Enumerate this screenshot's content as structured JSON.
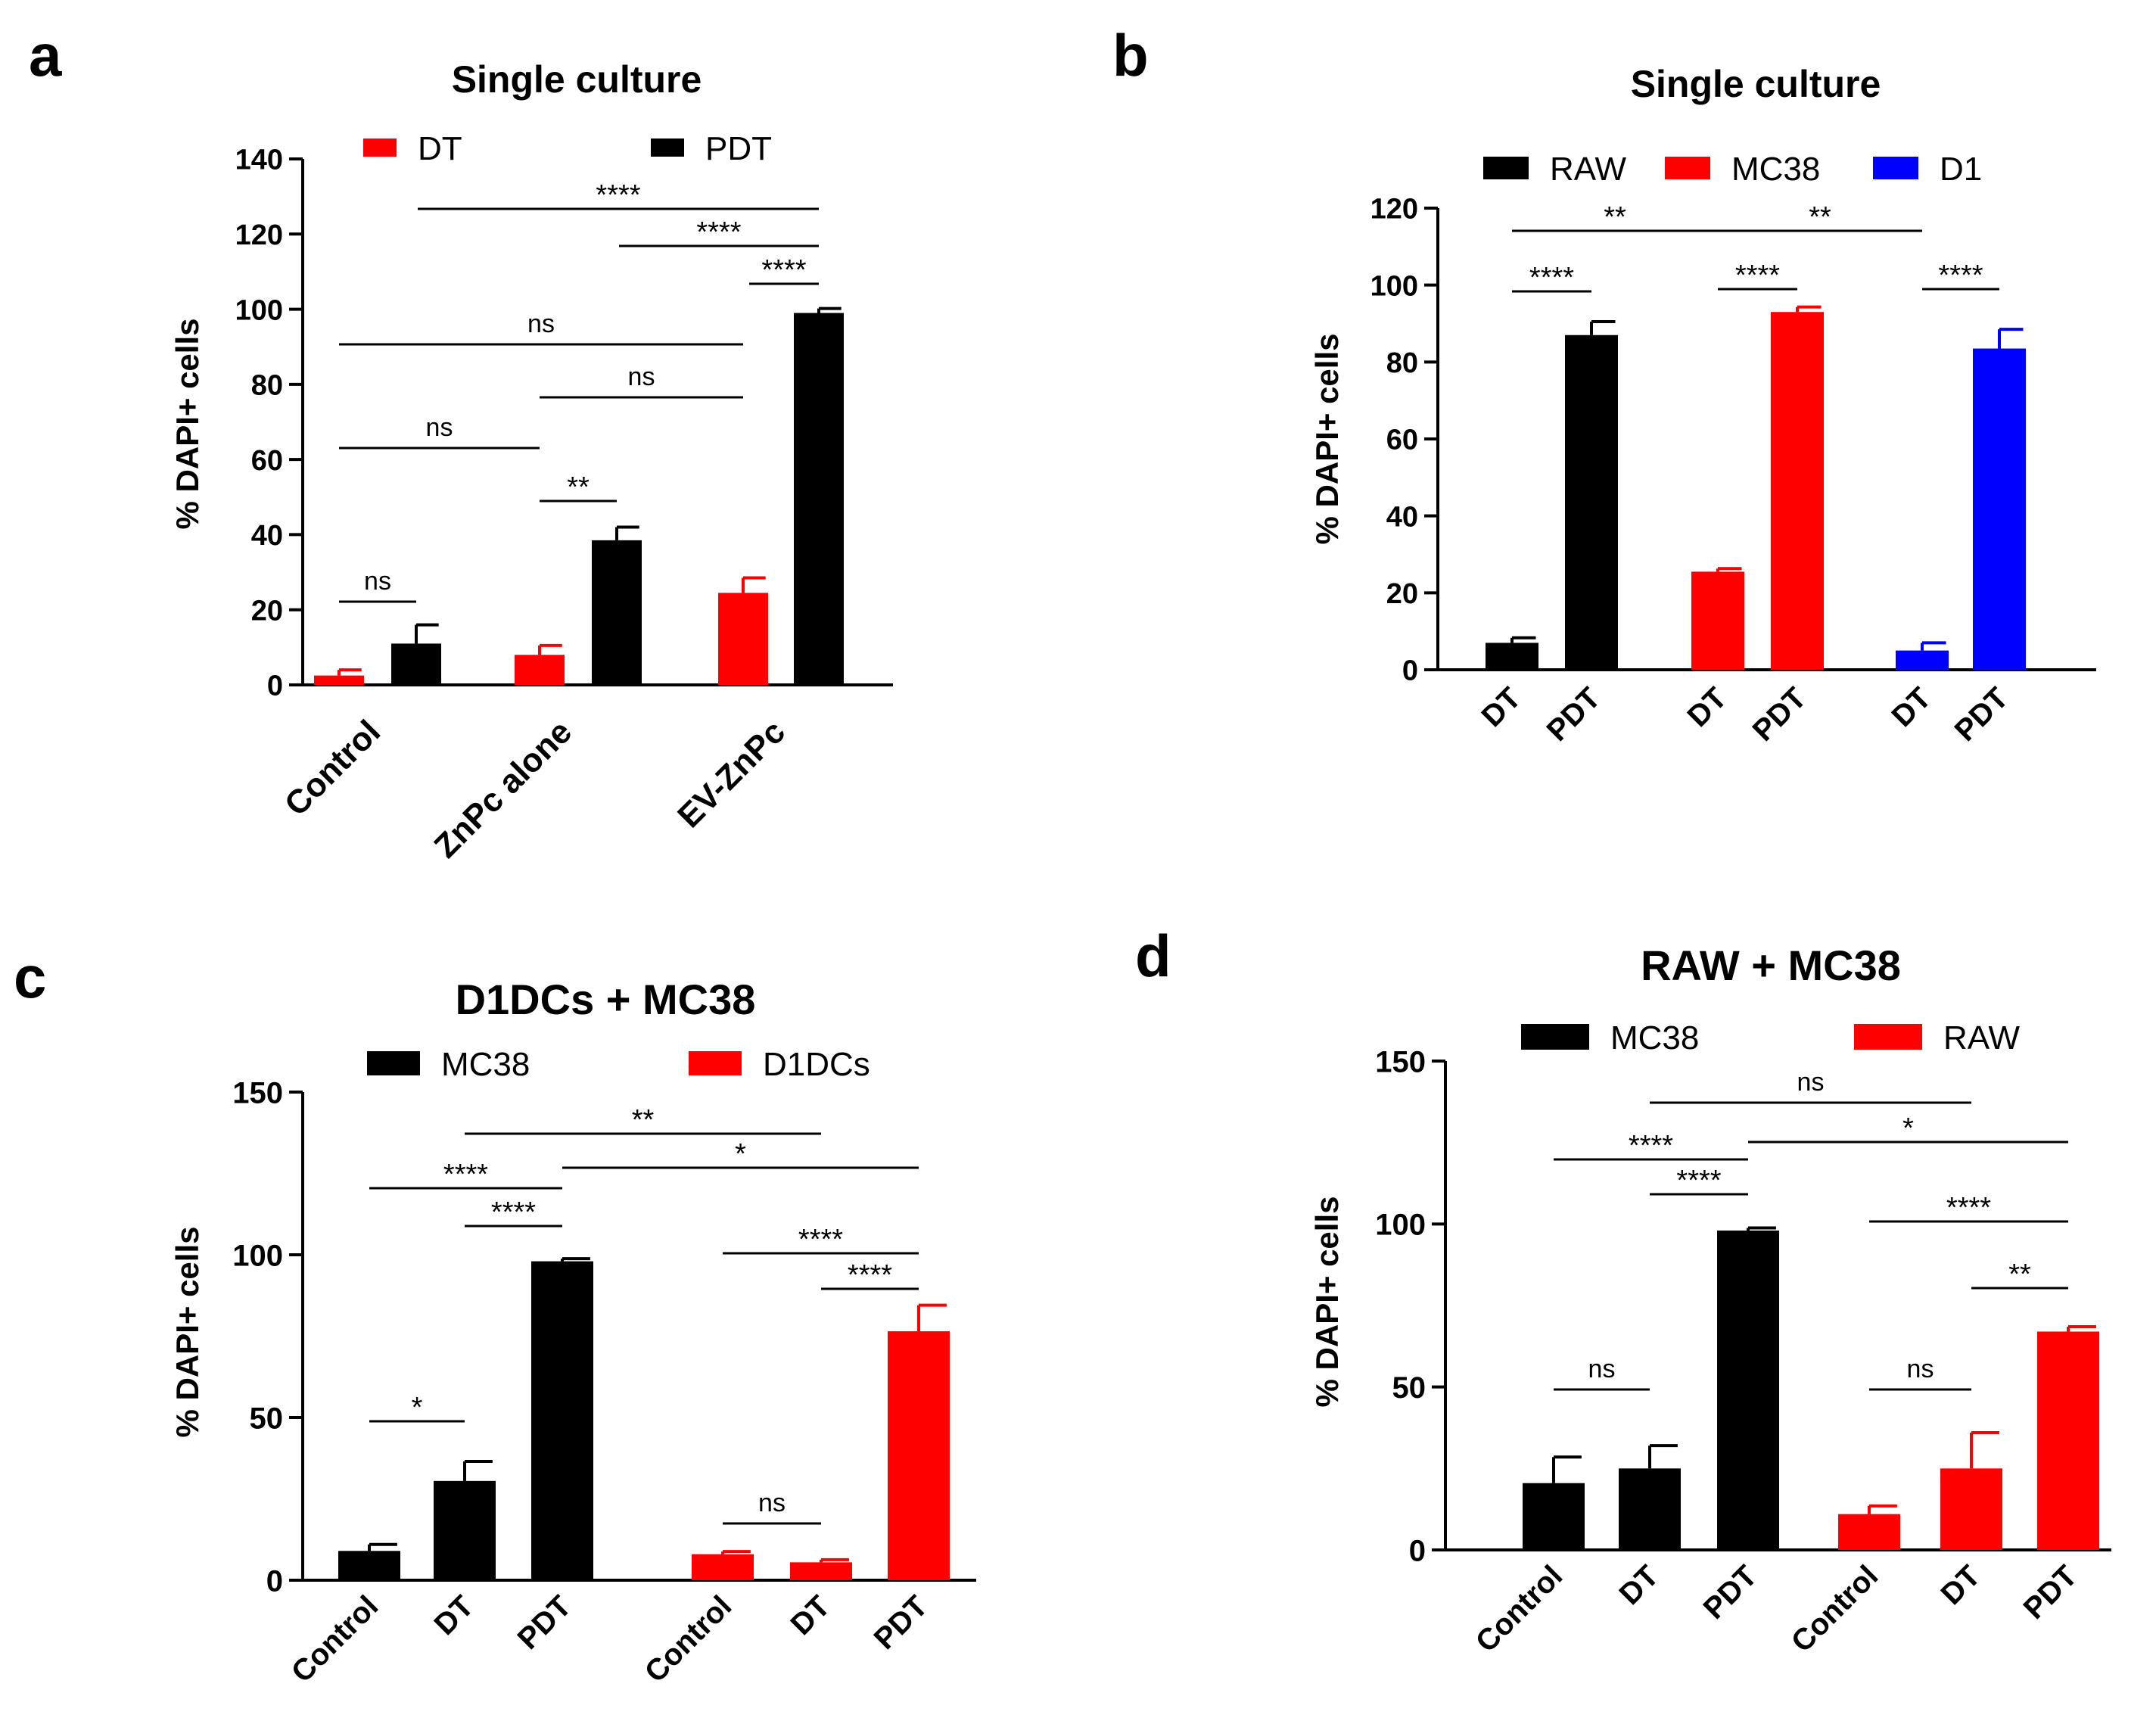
{
  "colors": {
    "black": "#000000",
    "red": "#ff0000",
    "blue": "#0000ff"
  },
  "chart_data": [
    {
      "panel": "a",
      "type": "bar",
      "title": "Single culture",
      "ylabel": "% DAPI+ cells",
      "ylim": [
        0,
        140
      ],
      "yticks": [
        "0",
        "20",
        "40",
        "60",
        "80",
        "100",
        "120",
        "140"
      ],
      "legend": [
        {
          "name": "DT",
          "color": "#ff0000"
        },
        {
          "name": "PDT",
          "color": "#000000"
        }
      ],
      "group_labels": [
        "Control",
        "ZnPc alone",
        "EV-ZnPc"
      ],
      "bars": [
        {
          "group": 0,
          "series": "DT",
          "color": "#ff0000",
          "value": 2.5,
          "error": 1.5
        },
        {
          "group": 0,
          "series": "PDT",
          "color": "#000000",
          "value": 11,
          "error": 5
        },
        {
          "group": 1,
          "series": "DT",
          "color": "#ff0000",
          "value": 8,
          "error": 2.5
        },
        {
          "group": 1,
          "series": "PDT",
          "color": "#000000",
          "value": 38.5,
          "error": 3.5
        },
        {
          "group": 2,
          "series": "DT",
          "color": "#ff0000",
          "value": 24.5,
          "error": 4
        },
        {
          "group": 2,
          "series": "PDT",
          "color": "#000000",
          "value": 99,
          "error": 1.2
        }
      ],
      "annotations": [
        {
          "from": 0,
          "to": 1,
          "label": "ns"
        },
        {
          "from": 2,
          "to": 3,
          "label": "**"
        },
        {
          "from": 0,
          "to": 2,
          "label": "ns"
        },
        {
          "from": 2,
          "to": 4,
          "label": "ns"
        },
        {
          "from": 0,
          "to": 4,
          "label": "ns"
        },
        {
          "from": 4,
          "to": 5,
          "label": "****"
        },
        {
          "from": 3,
          "to": 5,
          "label": "****"
        },
        {
          "from": 1,
          "to": 5,
          "label": "****"
        }
      ]
    },
    {
      "panel": "b",
      "type": "bar",
      "title": "Single culture",
      "ylabel": "% DAPI+ cells",
      "ylim": [
        0,
        120
      ],
      "yticks": [
        "0",
        "20",
        "40",
        "60",
        "80",
        "100",
        "120"
      ],
      "legend": [
        {
          "name": "RAW",
          "color": "#000000"
        },
        {
          "name": "MC38",
          "color": "#ff0000"
        },
        {
          "name": "D1",
          "color": "#0000ff"
        }
      ],
      "bars": [
        {
          "label": "DT",
          "color": "#000000",
          "value": 7,
          "error": 1.3
        },
        {
          "label": "PDT",
          "color": "#000000",
          "value": 87,
          "error": 3.5
        },
        {
          "label": "DT",
          "color": "#ff0000",
          "value": 25.5,
          "error": 0.8
        },
        {
          "label": "PDT",
          "color": "#ff0000",
          "value": 93,
          "error": 1.3
        },
        {
          "label": "DT",
          "color": "#0000ff",
          "value": 5,
          "error": 2
        },
        {
          "label": "PDT",
          "color": "#0000ff",
          "value": 83.5,
          "error": 5
        }
      ],
      "annotations": [
        {
          "from": 0,
          "to": 1,
          "label": "****"
        },
        {
          "from": 2,
          "to": 3,
          "label": "****"
        },
        {
          "from": 4,
          "to": 5,
          "label": "****"
        },
        {
          "from": 0,
          "to": 2,
          "label": "**"
        },
        {
          "from": 2,
          "to": 4,
          "label": "**"
        }
      ]
    },
    {
      "panel": "c",
      "type": "bar",
      "title": "D1DCs + MC38",
      "ylabel": "% DAPI+ cells",
      "ylim": [
        0,
        150
      ],
      "yticks": [
        "0",
        "50",
        "100",
        "150"
      ],
      "legend": [
        {
          "name": "MC38",
          "color": "#000000"
        },
        {
          "name": "D1DCs",
          "color": "#ff0000"
        }
      ],
      "bars": [
        {
          "label": "Control",
          "color": "#000000",
          "value": 9,
          "error": 2
        },
        {
          "label": "DT",
          "color": "#000000",
          "value": 30.5,
          "error": 6
        },
        {
          "label": "PDT",
          "color": "#000000",
          "value": 98,
          "error": 0.8
        },
        {
          "label": "Control",
          "color": "#ff0000",
          "value": 8,
          "error": 0.8
        },
        {
          "label": "DT",
          "color": "#ff0000",
          "value": 5.5,
          "error": 0.8
        },
        {
          "label": "PDT",
          "color": "#ff0000",
          "value": 76.5,
          "error": 8
        }
      ],
      "annotations": [
        {
          "from": 0,
          "to": 1,
          "label": "*"
        },
        {
          "from": 3,
          "to": 4,
          "label": "ns"
        },
        {
          "from": 4,
          "to": 5,
          "label": "****"
        },
        {
          "from": 3,
          "to": 5,
          "label": "****"
        },
        {
          "from": 1,
          "to": 2,
          "label": "****"
        },
        {
          "from": 0,
          "to": 2,
          "label": "****"
        },
        {
          "from": 2,
          "to": 5,
          "label": "*"
        },
        {
          "from": 1,
          "to": 4,
          "label": "**"
        }
      ]
    },
    {
      "panel": "d",
      "type": "bar",
      "title": "RAW + MC38",
      "ylabel": "% DAPI+ cells",
      "ylim": [
        0,
        150
      ],
      "yticks": [
        "0",
        "50",
        "100",
        "150"
      ],
      "legend": [
        {
          "name": "MC38",
          "color": "#000000"
        },
        {
          "name": "RAW",
          "color": "#ff0000"
        }
      ],
      "bars": [
        {
          "label": "Control",
          "color": "#000000",
          "value": 20.5,
          "error": 8
        },
        {
          "label": "DT",
          "color": "#000000",
          "value": 25,
          "error": 7
        },
        {
          "label": "PDT",
          "color": "#000000",
          "value": 98,
          "error": 0.8
        },
        {
          "label": "Control",
          "color": "#ff0000",
          "value": 11,
          "error": 2.5
        },
        {
          "label": "DT",
          "color": "#ff0000",
          "value": 25,
          "error": 11
        },
        {
          "label": "PDT",
          "color": "#ff0000",
          "value": 67,
          "error": 1.5
        }
      ],
      "annotations": [
        {
          "from": 0,
          "to": 1,
          "label": "ns"
        },
        {
          "from": 3,
          "to": 4,
          "label": "ns"
        },
        {
          "from": 4,
          "to": 5,
          "label": "**"
        },
        {
          "from": 3,
          "to": 5,
          "label": "****"
        },
        {
          "from": 1,
          "to": 2,
          "label": "****"
        },
        {
          "from": 0,
          "to": 2,
          "label": "****"
        },
        {
          "from": 2,
          "to": 5,
          "label": "*"
        },
        {
          "from": 1,
          "to": 4,
          "label": "ns"
        }
      ]
    }
  ]
}
